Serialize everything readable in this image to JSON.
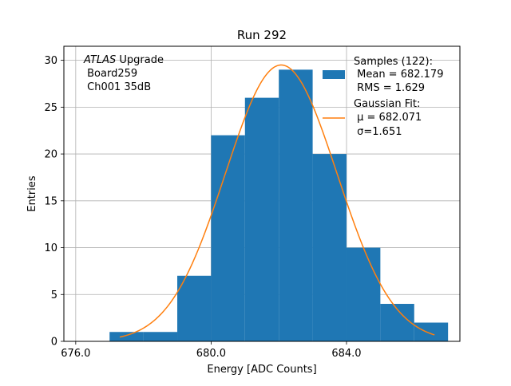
{
  "chart_data": {
    "type": "bar",
    "title": "Run 292",
    "xlabel": "Energy [ADC Counts]",
    "ylabel": "Entries",
    "xlim": [
      675.65,
      687.35
    ],
    "ylim": [
      0,
      31.5
    ],
    "xticks": [
      676.0,
      680.0,
      684.0
    ],
    "xtick_labels": [
      "676.0",
      "680.0",
      "684.0"
    ],
    "yticks": [
      0,
      5,
      10,
      15,
      20,
      25,
      30
    ],
    "ytick_labels": [
      "0",
      "5",
      "10",
      "15",
      "20",
      "25",
      "30"
    ],
    "grid": true,
    "bin_edges": [
      677,
      678,
      679,
      680,
      681,
      682,
      683,
      684,
      685,
      686,
      687
    ],
    "counts": [
      1,
      1,
      7,
      22,
      26,
      29,
      20,
      10,
      4,
      2
    ],
    "bar_color": "#1f77b4",
    "fit": {
      "type": "gaussian",
      "mu": 682.071,
      "sigma": 1.651,
      "amplitude": 29.5,
      "x_range": [
        677.3,
        686.6
      ],
      "color": "#ff7f0e"
    },
    "annotation": {
      "italic": "ATLAS",
      "line1_rest": " Upgrade",
      "line2": " Board259",
      "line3": " Ch001 35dB"
    },
    "legend": {
      "position": "top-right",
      "entries": [
        {
          "kind": "patch",
          "lines": [
            "Samples (122):",
            " Mean = 682.179",
            " RMS = 1.629"
          ]
        },
        {
          "kind": "line",
          "lines": [
            "Gaussian Fit:",
            " μ = 682.071",
            " σ=1.651"
          ]
        }
      ]
    }
  }
}
